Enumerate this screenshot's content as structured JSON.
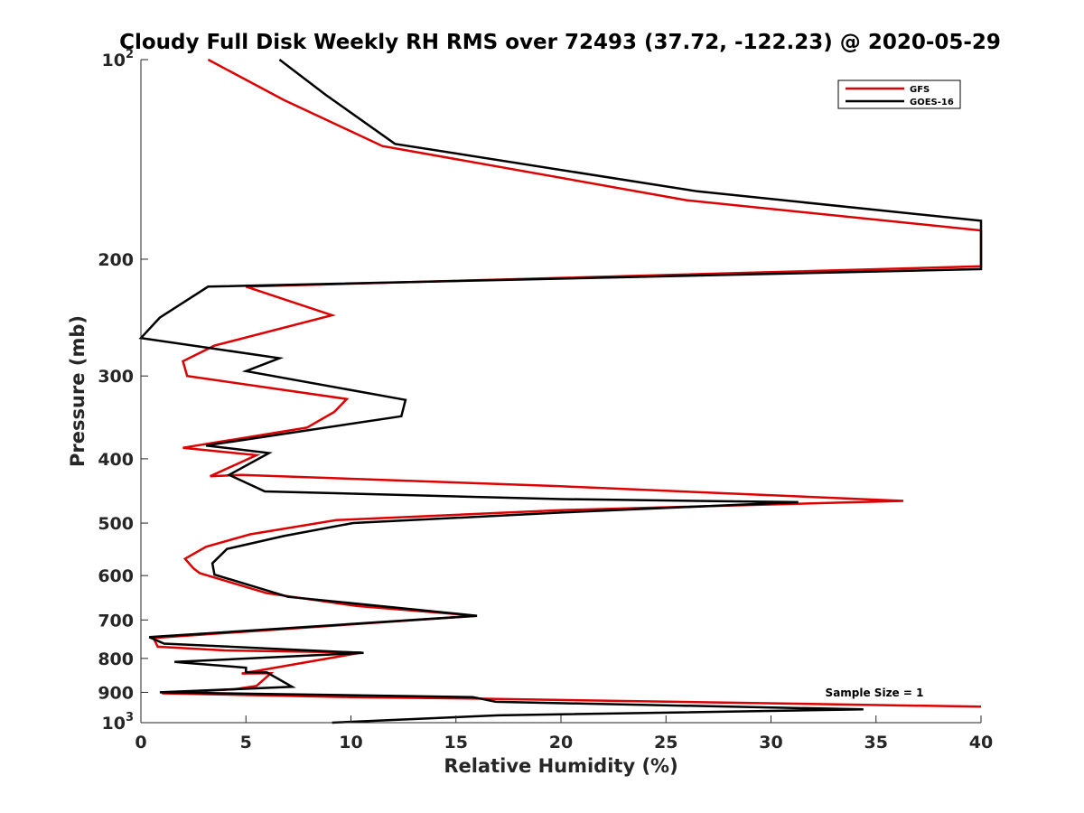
{
  "chart_data": {
    "type": "line",
    "title": "Cloudy Full Disk Weekly RH RMS over 72493 (37.72, -122.23) @ 2020-05-29",
    "xlabel": "Relative Humidity (%)",
    "ylabel": "Pressure (mb)",
    "xlim": [
      0,
      40
    ],
    "ylim": [
      1000,
      100
    ],
    "yscale": "log",
    "grid": false,
    "legend_position": "top-right",
    "x_ticks": [
      {
        "value": 0,
        "label": "0"
      },
      {
        "value": 5,
        "label": "5"
      },
      {
        "value": 10,
        "label": "10"
      },
      {
        "value": 15,
        "label": "15"
      },
      {
        "value": 20,
        "label": "20"
      },
      {
        "value": 25,
        "label": "25"
      },
      {
        "value": 30,
        "label": "30"
      },
      {
        "value": 35,
        "label": "35"
      },
      {
        "value": 40,
        "label": "40"
      }
    ],
    "y_ticks": [
      {
        "value": 100,
        "label": "10",
        "sup": "2"
      },
      {
        "value": 200,
        "label": "200",
        "sup": ""
      },
      {
        "value": 300,
        "label": "300",
        "sup": ""
      },
      {
        "value": 400,
        "label": "400",
        "sup": ""
      },
      {
        "value": 500,
        "label": "500",
        "sup": ""
      },
      {
        "value": 600,
        "label": "600",
        "sup": ""
      },
      {
        "value": 700,
        "label": "700",
        "sup": ""
      },
      {
        "value": 800,
        "label": "800",
        "sup": ""
      },
      {
        "value": 900,
        "label": "900",
        "sup": ""
      },
      {
        "value": 1000,
        "label": "10",
        "sup": "3"
      }
    ],
    "annotation": "Sample Size = 1",
    "series": [
      {
        "name": "GFS",
        "color": "#dd0000",
        "points": [
          [
            3.2,
            100
          ],
          [
            6.8,
            115
          ],
          [
            11.5,
            135
          ],
          [
            26,
            163
          ],
          [
            40,
            181
          ],
          [
            40,
            205
          ],
          [
            5.0,
            220
          ],
          [
            9.1,
            243
          ],
          [
            3.5,
            270
          ],
          [
            2.0,
            285
          ],
          [
            2.2,
            300
          ],
          [
            9.8,
            325
          ],
          [
            9.2,
            340
          ],
          [
            7.9,
            359
          ],
          [
            2.0,
            385
          ],
          [
            5.5,
            395
          ],
          [
            3.3,
            425
          ],
          [
            4.8,
            423
          ],
          [
            20,
            440
          ],
          [
            36.3,
            463
          ],
          [
            20,
            478
          ],
          [
            9.3,
            495
          ],
          [
            5.2,
            520
          ],
          [
            3.1,
            543
          ],
          [
            2.1,
            566
          ],
          [
            2.5,
            585
          ],
          [
            2.8,
            595
          ],
          [
            6.0,
            638
          ],
          [
            10.3,
            667
          ],
          [
            16.0,
            690
          ],
          [
            0.6,
            745
          ],
          [
            0.8,
            768
          ],
          [
            4.0,
            778
          ],
          [
            10.5,
            784
          ],
          [
            4.8,
            843
          ],
          [
            6.2,
            842
          ],
          [
            5.5,
            880
          ],
          [
            4.5,
            890
          ],
          [
            1.0,
            903
          ],
          [
            10,
            915
          ],
          [
            16,
            920
          ],
          [
            40,
            946
          ]
        ]
      },
      {
        "name": "GOES-16",
        "color": "#000000",
        "points": [
          [
            6.6,
            100
          ],
          [
            8.8,
            113
          ],
          [
            12.1,
            134
          ],
          [
            26.5,
            158
          ],
          [
            40,
            175
          ],
          [
            40,
            207
          ],
          [
            3.2,
            220
          ],
          [
            0.9,
            245
          ],
          [
            0.0,
            263
          ],
          [
            6.6,
            282
          ],
          [
            5.0,
            295
          ],
          [
            12.6,
            326
          ],
          [
            12.4,
            345
          ],
          [
            3.1,
            382
          ],
          [
            6.1,
            392
          ],
          [
            4.2,
            423
          ],
          [
            5.9,
            448
          ],
          [
            20,
            460
          ],
          [
            31.3,
            465
          ],
          [
            20,
            482
          ],
          [
            10.1,
            500
          ],
          [
            6.8,
            523
          ],
          [
            4.1,
            547
          ],
          [
            3.4,
            575
          ],
          [
            3.5,
            598
          ],
          [
            7.0,
            646
          ],
          [
            16.0,
            690
          ],
          [
            0.4,
            743
          ],
          [
            1.1,
            760
          ],
          [
            10.6,
            785
          ],
          [
            1.6,
            810
          ],
          [
            5.0,
            826
          ],
          [
            5.0,
            839
          ],
          [
            6.0,
            840
          ],
          [
            7.2,
            883
          ],
          [
            0.9,
            900
          ],
          [
            15.8,
            915
          ],
          [
            16.9,
            930
          ],
          [
            34.4,
            955
          ],
          [
            17,
            975
          ],
          [
            9.1,
            1000
          ]
        ]
      }
    ]
  }
}
